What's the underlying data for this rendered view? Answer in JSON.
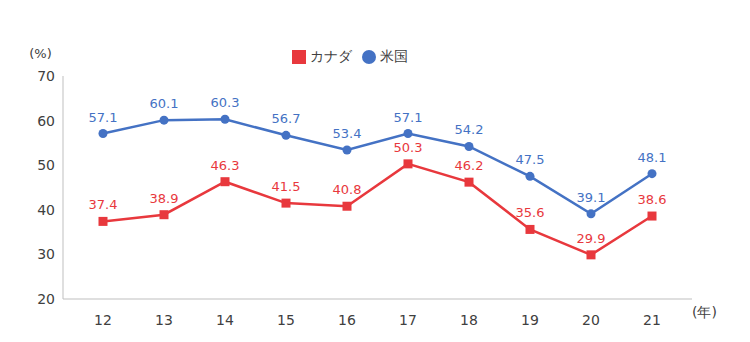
{
  "chart_data": {
    "type": "line",
    "xlabel": "(年)",
    "ylabel": "(%)",
    "categories": [
      "12",
      "13",
      "14",
      "15",
      "16",
      "17",
      "18",
      "19",
      "20",
      "21"
    ],
    "series": [
      {
        "name": "米国",
        "color": "#4472c4",
        "marker": "circle",
        "values": [
          57.1,
          60.1,
          60.3,
          56.7,
          53.4,
          57.1,
          54.2,
          47.5,
          39.1,
          48.1
        ]
      },
      {
        "name": "カナダ",
        "color": "#e8383d",
        "marker": "square",
        "values": [
          37.4,
          38.9,
          46.3,
          41.5,
          40.8,
          50.3,
          46.2,
          35.6,
          29.9,
          38.6
        ]
      }
    ],
    "ylim": [
      20,
      70
    ],
    "yticks": [
      20,
      30,
      40,
      50,
      60,
      70
    ],
    "grid": false,
    "legend": "top",
    "data_labels": true
  }
}
